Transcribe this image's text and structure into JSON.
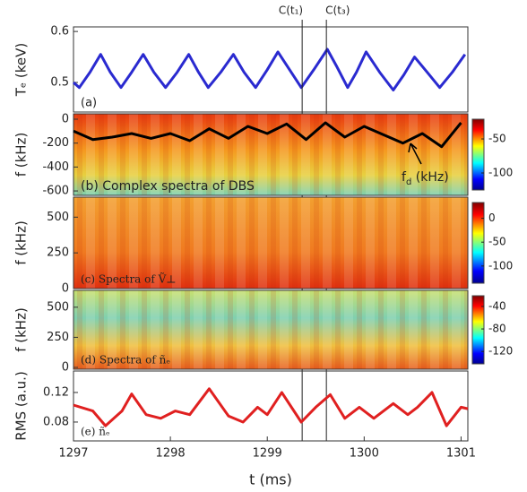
{
  "chart_data": [
    {
      "type": "line",
      "panel_label": "(a)",
      "ylabel": "Tₑ (keV)",
      "ylim": [
        0.442,
        0.609
      ],
      "yticks": [
        0.5,
        0.6
      ],
      "vlines": [
        {
          "x": 1299.36,
          "label": "C(t₁)"
        },
        {
          "x": 1299.61,
          "label": "C(t₃)"
        }
      ],
      "series": [
        {
          "color": "#2a2ad0",
          "x": [
            1297.0,
            1297.06,
            1297.17,
            1297.28,
            1297.38,
            1297.49,
            1297.6,
            1297.72,
            1297.83,
            1297.95,
            1298.07,
            1298.19,
            1298.29,
            1298.39,
            1298.52,
            1298.65,
            1298.76,
            1298.88,
            1299.0,
            1299.11,
            1299.23,
            1299.35,
            1299.48,
            1299.62,
            1299.72,
            1299.83,
            1299.92,
            1300.02,
            1300.16,
            1300.3,
            1300.41,
            1300.52,
            1300.65,
            1300.78,
            1300.91,
            1301.04
          ],
          "values": [
            0.5,
            0.49,
            0.52,
            0.555,
            0.52,
            0.49,
            0.52,
            0.555,
            0.52,
            0.49,
            0.52,
            0.555,
            0.52,
            0.49,
            0.52,
            0.555,
            0.52,
            0.49,
            0.525,
            0.56,
            0.525,
            0.49,
            0.525,
            0.565,
            0.53,
            0.49,
            0.52,
            0.56,
            0.52,
            0.485,
            0.515,
            0.55,
            0.52,
            0.49,
            0.52,
            0.555
          ]
        }
      ]
    },
    {
      "type": "heatmap",
      "panel_label": "(b) Complex spectra of DBS",
      "ylabel": "f (kHz)",
      "ylim": [
        -637,
        45
      ],
      "yticks": [
        0,
        -200,
        -400,
        -600
      ],
      "clim": [
        -125,
        -21
      ],
      "cticks": [
        -50,
        -100
      ],
      "annotation": {
        "text": "f",
        "sub": "d",
        "rest": " (kHz)"
      },
      "series": [
        {
          "color": "#000000",
          "x": [
            1297.0,
            1297.2,
            1297.4,
            1297.6,
            1297.8,
            1298.0,
            1298.2,
            1298.4,
            1298.6,
            1298.8,
            1299.0,
            1299.2,
            1299.4,
            1299.6,
            1299.8,
            1300.0,
            1300.2,
            1300.4,
            1300.6,
            1300.8,
            1301.0
          ],
          "values": [
            -100,
            -170,
            -150,
            -120,
            -160,
            -120,
            -180,
            -80,
            -160,
            -60,
            -120,
            -40,
            -170,
            -30,
            -150,
            -60,
            -130,
            -200,
            -120,
            -230,
            -30
          ]
        }
      ]
    },
    {
      "type": "heatmap",
      "panel_label": "(c) Spectra of Ṽ⊥",
      "ylabel": "f (kHz)",
      "ylim": [
        0,
        640
      ],
      "yticks": [
        0,
        250,
        500
      ],
      "clim": [
        -136,
        33
      ],
      "cticks": [
        0,
        -50,
        -100
      ]
    },
    {
      "type": "heatmap",
      "panel_label": "(d) Spectra of ñₑ",
      "ylabel": "f (kHz)",
      "ylim": [
        -15,
        640
      ],
      "yticks": [
        0,
        250,
        500
      ],
      "clim": [
        -142,
        -21
      ],
      "cticks": [
        -40,
        -80,
        -120
      ]
    },
    {
      "type": "line",
      "panel_label": "(e) ñₑ",
      "ylabel": "RMS (a.u.)",
      "ylim": [
        0.0545,
        0.149
      ],
      "yticks": [
        0.08,
        0.12
      ],
      "xlabel": "t (ms)",
      "xlim": [
        1297,
        1301.07
      ],
      "xticks": [
        1297,
        1298,
        1299,
        1300,
        1301
      ],
      "series": [
        {
          "color": "#e02020",
          "x": [
            1297.0,
            1297.2,
            1297.33,
            1297.5,
            1297.6,
            1297.75,
            1297.9,
            1298.05,
            1298.2,
            1298.4,
            1298.6,
            1298.75,
            1298.9,
            1299.0,
            1299.15,
            1299.35,
            1299.5,
            1299.65,
            1299.8,
            1299.95,
            1300.1,
            1300.3,
            1300.45,
            1300.55,
            1300.7,
            1300.85,
            1301.0,
            1301.07
          ],
          "values": [
            0.103,
            0.095,
            0.075,
            0.095,
            0.118,
            0.09,
            0.085,
            0.095,
            0.09,
            0.125,
            0.088,
            0.08,
            0.1,
            0.09,
            0.12,
            0.08,
            0.1,
            0.117,
            0.085,
            0.1,
            0.085,
            0.105,
            0.09,
            0.1,
            0.12,
            0.075,
            0.1,
            0.098
          ]
        }
      ]
    }
  ]
}
